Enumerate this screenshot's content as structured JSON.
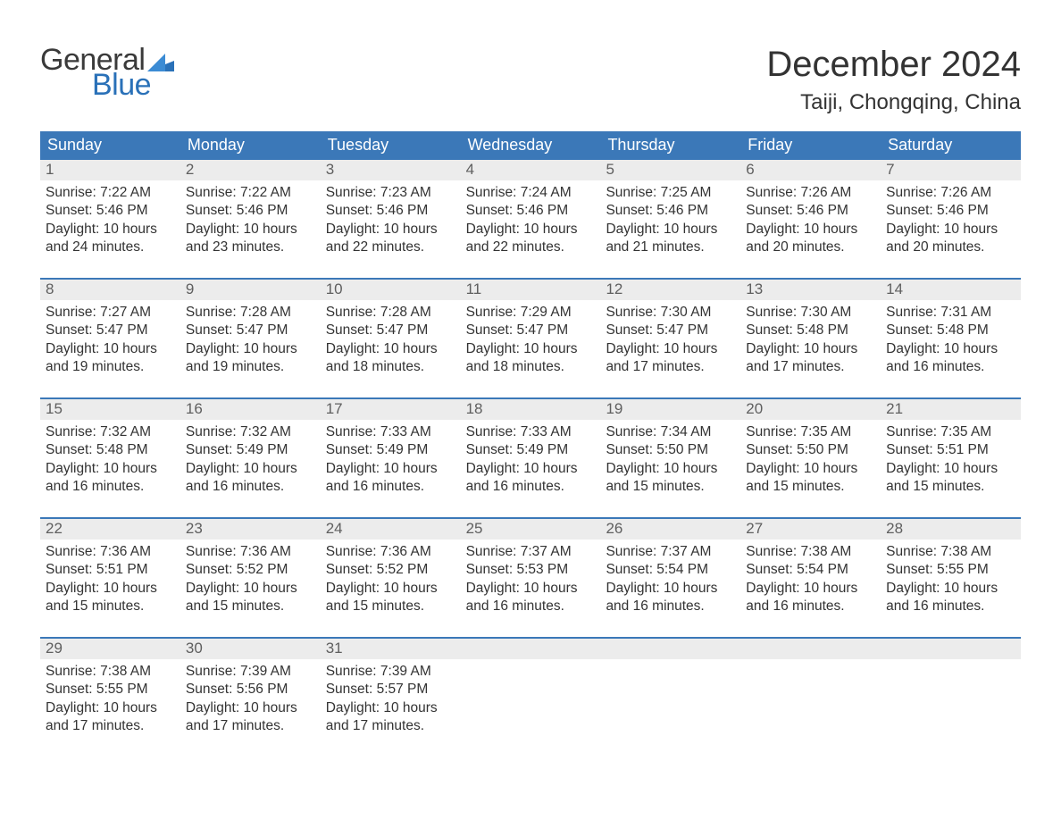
{
  "brand": {
    "line1": "General",
    "line2": "Blue"
  },
  "title": "December 2024",
  "location": "Taiji, Chongqing, China",
  "colors": {
    "header_bg": "#3b78b8",
    "header_text": "#ffffff",
    "daynum_bg": "#ececec",
    "daynum_text": "#5f5f5f",
    "body_text": "#333333",
    "week_border": "#3b78b8",
    "brand_blue": "#2a71b8"
  },
  "dow": [
    "Sunday",
    "Monday",
    "Tuesday",
    "Wednesday",
    "Thursday",
    "Friday",
    "Saturday"
  ],
  "weeks": [
    [
      {
        "n": "1",
        "sunrise": "7:22 AM",
        "sunset": "5:46 PM",
        "dl_h": "10",
        "dl_m": "24"
      },
      {
        "n": "2",
        "sunrise": "7:22 AM",
        "sunset": "5:46 PM",
        "dl_h": "10",
        "dl_m": "23"
      },
      {
        "n": "3",
        "sunrise": "7:23 AM",
        "sunset": "5:46 PM",
        "dl_h": "10",
        "dl_m": "22"
      },
      {
        "n": "4",
        "sunrise": "7:24 AM",
        "sunset": "5:46 PM",
        "dl_h": "10",
        "dl_m": "22"
      },
      {
        "n": "5",
        "sunrise": "7:25 AM",
        "sunset": "5:46 PM",
        "dl_h": "10",
        "dl_m": "21"
      },
      {
        "n": "6",
        "sunrise": "7:26 AM",
        "sunset": "5:46 PM",
        "dl_h": "10",
        "dl_m": "20"
      },
      {
        "n": "7",
        "sunrise": "7:26 AM",
        "sunset": "5:46 PM",
        "dl_h": "10",
        "dl_m": "20"
      }
    ],
    [
      {
        "n": "8",
        "sunrise": "7:27 AM",
        "sunset": "5:47 PM",
        "dl_h": "10",
        "dl_m": "19"
      },
      {
        "n": "9",
        "sunrise": "7:28 AM",
        "sunset": "5:47 PM",
        "dl_h": "10",
        "dl_m": "19"
      },
      {
        "n": "10",
        "sunrise": "7:28 AM",
        "sunset": "5:47 PM",
        "dl_h": "10",
        "dl_m": "18"
      },
      {
        "n": "11",
        "sunrise": "7:29 AM",
        "sunset": "5:47 PM",
        "dl_h": "10",
        "dl_m": "18"
      },
      {
        "n": "12",
        "sunrise": "7:30 AM",
        "sunset": "5:47 PM",
        "dl_h": "10",
        "dl_m": "17"
      },
      {
        "n": "13",
        "sunrise": "7:30 AM",
        "sunset": "5:48 PM",
        "dl_h": "10",
        "dl_m": "17"
      },
      {
        "n": "14",
        "sunrise": "7:31 AM",
        "sunset": "5:48 PM",
        "dl_h": "10",
        "dl_m": "16"
      }
    ],
    [
      {
        "n": "15",
        "sunrise": "7:32 AM",
        "sunset": "5:48 PM",
        "dl_h": "10",
        "dl_m": "16"
      },
      {
        "n": "16",
        "sunrise": "7:32 AM",
        "sunset": "5:49 PM",
        "dl_h": "10",
        "dl_m": "16"
      },
      {
        "n": "17",
        "sunrise": "7:33 AM",
        "sunset": "5:49 PM",
        "dl_h": "10",
        "dl_m": "16"
      },
      {
        "n": "18",
        "sunrise": "7:33 AM",
        "sunset": "5:49 PM",
        "dl_h": "10",
        "dl_m": "16"
      },
      {
        "n": "19",
        "sunrise": "7:34 AM",
        "sunset": "5:50 PM",
        "dl_h": "10",
        "dl_m": "15"
      },
      {
        "n": "20",
        "sunrise": "7:35 AM",
        "sunset": "5:50 PM",
        "dl_h": "10",
        "dl_m": "15"
      },
      {
        "n": "21",
        "sunrise": "7:35 AM",
        "sunset": "5:51 PM",
        "dl_h": "10",
        "dl_m": "15"
      }
    ],
    [
      {
        "n": "22",
        "sunrise": "7:36 AM",
        "sunset": "5:51 PM",
        "dl_h": "10",
        "dl_m": "15"
      },
      {
        "n": "23",
        "sunrise": "7:36 AM",
        "sunset": "5:52 PM",
        "dl_h": "10",
        "dl_m": "15"
      },
      {
        "n": "24",
        "sunrise": "7:36 AM",
        "sunset": "5:52 PM",
        "dl_h": "10",
        "dl_m": "15"
      },
      {
        "n": "25",
        "sunrise": "7:37 AM",
        "sunset": "5:53 PM",
        "dl_h": "10",
        "dl_m": "16"
      },
      {
        "n": "26",
        "sunrise": "7:37 AM",
        "sunset": "5:54 PM",
        "dl_h": "10",
        "dl_m": "16"
      },
      {
        "n": "27",
        "sunrise": "7:38 AM",
        "sunset": "5:54 PM",
        "dl_h": "10",
        "dl_m": "16"
      },
      {
        "n": "28",
        "sunrise": "7:38 AM",
        "sunset": "5:55 PM",
        "dl_h": "10",
        "dl_m": "16"
      }
    ],
    [
      {
        "n": "29",
        "sunrise": "7:38 AM",
        "sunset": "5:55 PM",
        "dl_h": "10",
        "dl_m": "17"
      },
      {
        "n": "30",
        "sunrise": "7:39 AM",
        "sunset": "5:56 PM",
        "dl_h": "10",
        "dl_m": "17"
      },
      {
        "n": "31",
        "sunrise": "7:39 AM",
        "sunset": "5:57 PM",
        "dl_h": "10",
        "dl_m": "17"
      },
      null,
      null,
      null,
      null
    ]
  ],
  "labels": {
    "sunrise": "Sunrise: ",
    "sunset": "Sunset: ",
    "daylight_pre": "Daylight: ",
    "daylight_mid": " hours and ",
    "daylight_post": " minutes."
  }
}
